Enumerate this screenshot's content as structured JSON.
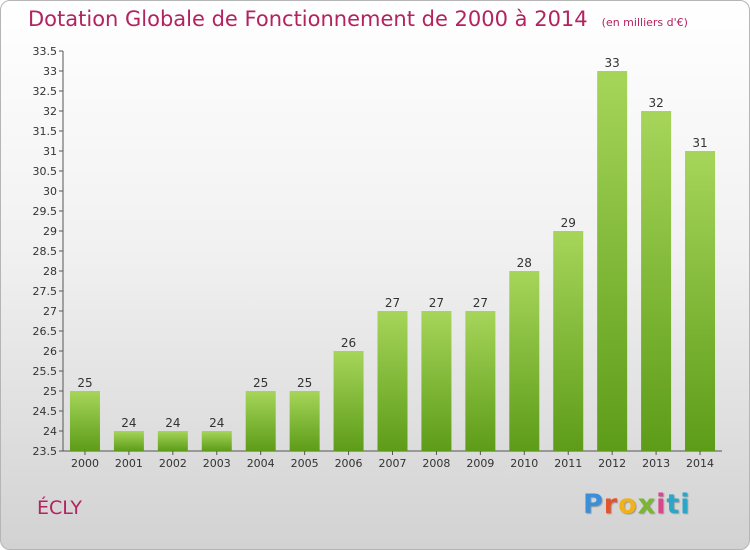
{
  "header": {
    "title": "Dotation Globale de Fonctionnement de 2000 à 2014",
    "subtitle": "(en milliers d'€)"
  },
  "footer": {
    "commune": "ÉCLY",
    "brand": [
      "P",
      "r",
      "o",
      "x",
      "i",
      "ti"
    ]
  },
  "colors": {
    "title": "#b3235f",
    "bar_light": "#a6d55a",
    "bar_dark": "#5d9c18"
  },
  "chart_data": {
    "type": "bar",
    "categories": [
      "2000",
      "2001",
      "2002",
      "2003",
      "2004",
      "2005",
      "2006",
      "2007",
      "2008",
      "2009",
      "2010",
      "2011",
      "2012",
      "2013",
      "2014"
    ],
    "values": [
      25,
      24,
      24,
      24,
      25,
      25,
      26,
      27,
      27,
      27,
      28,
      29,
      33,
      32,
      31
    ],
    "data_labels": [
      "25",
      "24",
      "24",
      "24",
      "25",
      "25",
      "26",
      "27",
      "27",
      "27",
      "28",
      "29",
      "33",
      "32",
      "31"
    ],
    "title": "Dotation Globale de Fonctionnement de 2000 à 2014",
    "subtitle": "(en milliers d'€)",
    "ylim": [
      23.5,
      33.5
    ],
    "y_ticks": [
      "23.5",
      "24",
      "24.5",
      "25",
      "25.5",
      "26",
      "26.5",
      "27",
      "27.5",
      "28",
      "28.5",
      "29",
      "29.5",
      "30",
      "30.5",
      "31",
      "31.5",
      "32",
      "32.5",
      "33",
      "33.5"
    ],
    "grid": false,
    "legend": "none"
  }
}
